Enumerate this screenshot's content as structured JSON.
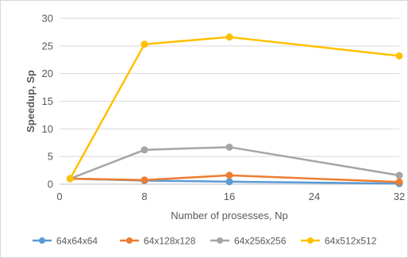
{
  "chart_data": {
    "type": "line",
    "title": "",
    "xlabel": "Number of prosesses, Np",
    "ylabel": "Speedup, Sp",
    "xlim": [
      0,
      32
    ],
    "ylim": [
      0,
      30
    ],
    "x_ticks": [
      0,
      8,
      16,
      24,
      32
    ],
    "y_ticks": [
      0,
      5,
      10,
      15,
      20,
      25,
      30
    ],
    "grid": "horizontal",
    "legend_position": "bottom",
    "x": [
      1,
      8,
      16,
      32
    ],
    "series": [
      {
        "name": "64x64x64",
        "color": "#5b9bd5",
        "values": [
          1.0,
          0.65,
          0.45,
          0.1
        ]
      },
      {
        "name": "64x128x128",
        "color": "#ed7d31",
        "values": [
          1.0,
          0.75,
          1.6,
          0.4
        ]
      },
      {
        "name": "64x256x256",
        "color": "#a5a5a5",
        "values": [
          1.0,
          6.2,
          6.7,
          1.6
        ]
      },
      {
        "name": "64x512x512",
        "color": "#ffc000",
        "values": [
          1.0,
          25.3,
          26.6,
          23.2
        ]
      }
    ]
  }
}
